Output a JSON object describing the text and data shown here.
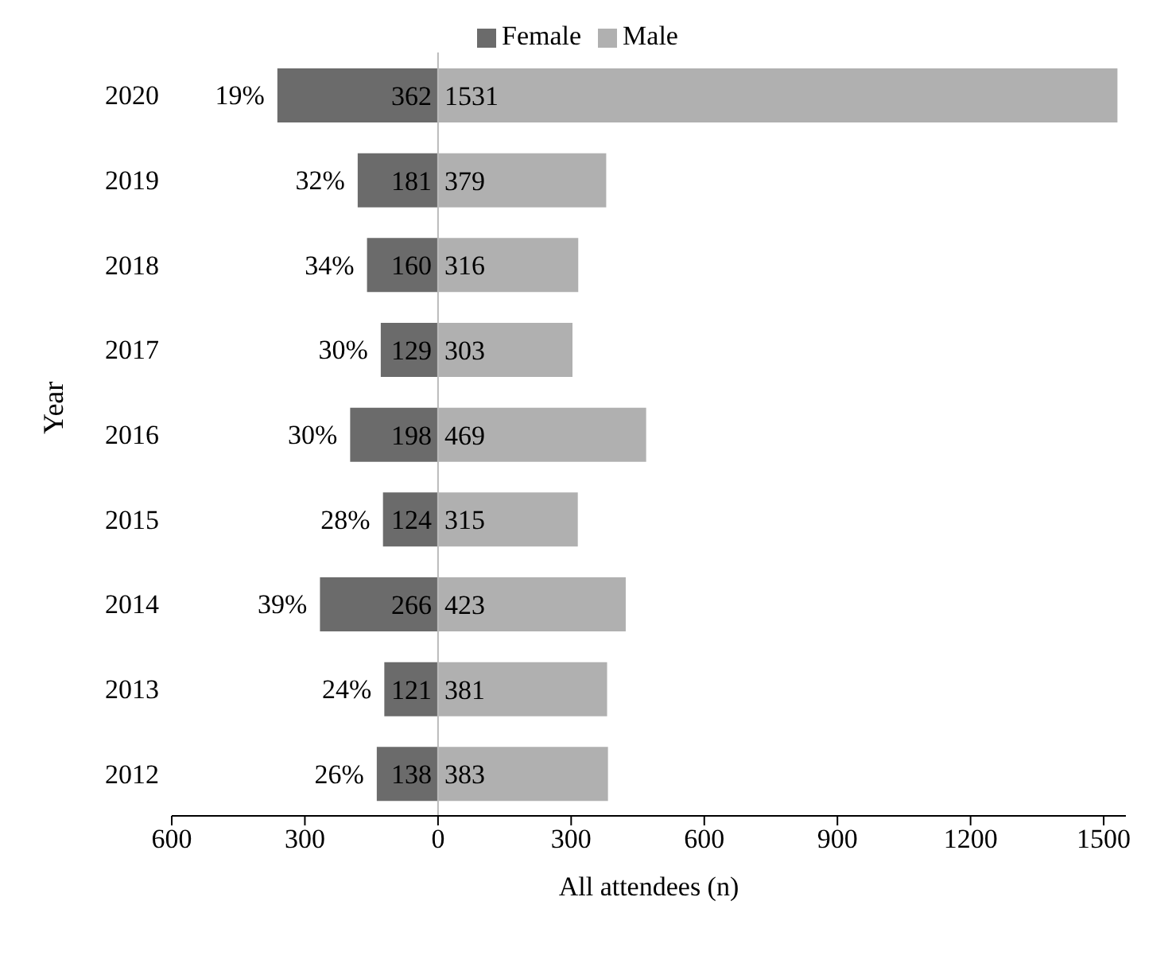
{
  "chart_data": {
    "type": "bar",
    "orientation": "horizontal",
    "xlabel": "All attendees (n)",
    "ylabel": "Year",
    "categories": [
      "2020",
      "2019",
      "2018",
      "2017",
      "2016",
      "2015",
      "2014",
      "2013",
      "2012"
    ],
    "series": [
      {
        "name": "Female",
        "color": "#6b6b6b",
        "values": [
          362,
          181,
          160,
          129,
          198,
          124,
          266,
          121,
          138
        ],
        "base": [
          -362,
          -181,
          -160,
          -129,
          -198,
          -124,
          -266,
          -121,
          -138
        ]
      },
      {
        "name": "Male",
        "color": "#b0b0b0",
        "values": [
          1531,
          379,
          316,
          303,
          469,
          315,
          423,
          381,
          383
        ]
      }
    ],
    "data_labels": true,
    "xlim": [
      -600,
      1550
    ],
    "xticks": [
      {
        "value": -600,
        "label": "600"
      },
      {
        "value": -300,
        "label": "300"
      },
      0,
      300,
      600,
      900,
      1200,
      1500
    ],
    "ref_lines": [
      {
        "axis": "x",
        "value": 0,
        "color": "#bbbbbb"
      }
    ],
    "annotations": [
      {
        "text": "19%",
        "x": -362,
        "y": "2020"
      },
      {
        "text": "32%",
        "x": -181,
        "y": "2019"
      },
      {
        "text": "34%",
        "x": -160,
        "y": "2018"
      },
      {
        "text": "30%",
        "x": -129,
        "y": "2017"
      },
      {
        "text": "30%",
        "x": -198,
        "y": "2016"
      },
      {
        "text": "28%",
        "x": -124,
        "y": "2015"
      },
      {
        "text": "39%",
        "x": -266,
        "y": "2014"
      },
      {
        "text": "24%",
        "x": -121,
        "y": "2013"
      },
      {
        "text": "26%",
        "x": -138,
        "y": "2012"
      }
    ],
    "legend": "top"
  }
}
